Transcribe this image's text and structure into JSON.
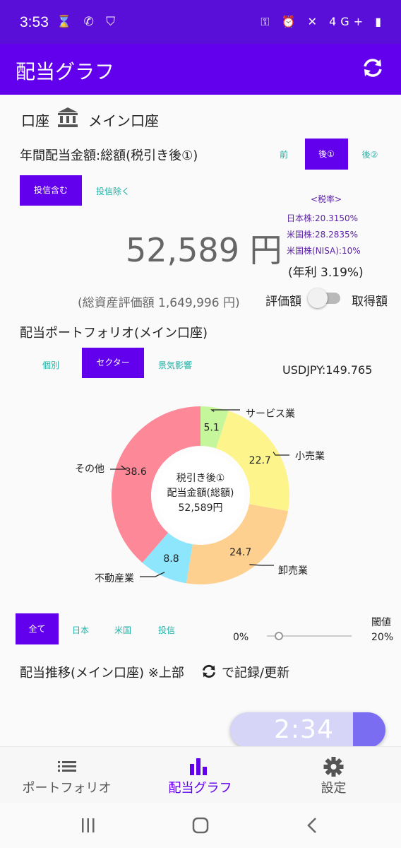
{
  "status_bar": {
    "time": "3:53",
    "left_icons": "⌛ ✆ ⛉",
    "right_icons": "⚿ ⏰ ✕ 4G+ ▮"
  },
  "app_bar": {
    "title": "配当グラフ"
  },
  "account": {
    "label": "口座",
    "name": "メイン口座"
  },
  "dividend": {
    "heading": "年間配当金額:総額(税引き後①)",
    "tabs": [
      "前",
      "後①",
      "後②"
    ],
    "selected_tab": "後①",
    "filter_tabs": [
      "投信含む",
      "投信除く"
    ],
    "amount": "52,589 円",
    "annual_yield": "(年利 3.19%)",
    "total_assets": "(総資産評価額 1,649,996 円)",
    "tax_rate": {
      "title": "<税率>",
      "jp": "日本株:20.3150%",
      "us": "米国株:28.2835%",
      "nisa": "米国株(NISA):10%"
    },
    "toggle": {
      "left": "評価額",
      "right": "取得額"
    }
  },
  "portfolio": {
    "heading": "配当ポートフォリオ(メイン口座)",
    "tabs": [
      "個別",
      "セクター",
      "景気影響"
    ],
    "fx": "USDJPY:149.765",
    "center": {
      "line1": "税引き後①",
      "line2": "配当金額(総額)",
      "line3": "52,589円"
    }
  },
  "chart_data": {
    "type": "pie",
    "categories": [
      "サービス業",
      "小売業",
      "卸売業",
      "不動産業",
      "その他"
    ],
    "values": [
      5.1,
      22.7,
      24.7,
      8.8,
      38.6
    ],
    "colors": [
      "#c5f69c",
      "#fdf48c",
      "#fdd08f",
      "#8ee6fd",
      "#fd8898"
    ]
  },
  "region_filter": {
    "tabs": [
      "全て",
      "日本",
      "米国",
      "投信"
    ]
  },
  "threshold": {
    "label": "閾値",
    "min": "0%",
    "max": "20%"
  },
  "history": {
    "prefix": "配当推移(メイン口座) ※上部",
    "suffix": "で記録/更新"
  },
  "timer": {
    "value": "2:34"
  },
  "bottom_nav": [
    {
      "label": "ポートフォリオ",
      "icon": "list-icon"
    },
    {
      "label": "配当グラフ",
      "icon": "bar-chart-icon"
    },
    {
      "label": "設定",
      "icon": "gear-icon"
    }
  ]
}
